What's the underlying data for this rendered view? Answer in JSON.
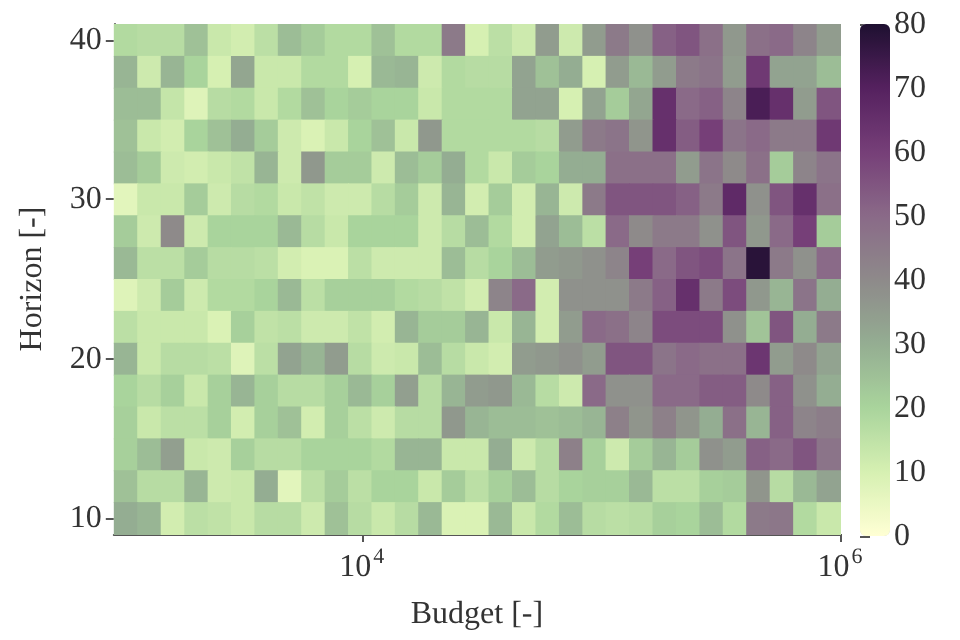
{
  "chart_data": {
    "type": "heatmap",
    "xlabel": "Budget [-]",
    "ylabel": "Horizon [-]",
    "x": [
      1030,
      1290,
      1620,
      2030,
      2540,
      3180,
      3990,
      4990,
      6260,
      7840,
      9820,
      12300,
      15400,
      19300,
      24200,
      30300,
      38000,
      47600,
      59700,
      74800,
      93700,
      117000,
      147000,
      184000,
      231000,
      289000,
      362000,
      454000,
      569000,
      713000,
      894000
    ],
    "y": [
      40,
      38,
      36,
      34,
      32,
      30,
      28,
      26,
      24,
      22,
      20,
      18,
      16,
      14,
      12,
      10
    ],
    "log": "x",
    "xlim": [
      920,
      1000000
    ],
    "xticks": [
      {
        "value": 10000,
        "label": "10$^{4}$"
      },
      {
        "value": 1000000,
        "label": "10$^{6}$"
      }
    ],
    "ylim": [
      9,
      41
    ],
    "yticks": [
      10,
      20,
      30,
      40
    ],
    "clim": [
      0,
      80
    ],
    "cticks": [
      0,
      10,
      20,
      30,
      40,
      50,
      60,
      70,
      80
    ],
    "cells": [
      [
        18,
        17,
        17,
        25,
        13,
        11,
        16,
        26,
        22,
        18,
        18,
        25,
        18,
        18,
        45,
        10,
        16,
        12,
        35,
        12,
        35,
        45,
        38,
        52,
        55,
        48,
        36,
        48,
        50,
        42,
        35
      ],
      [
        28,
        12,
        28,
        20,
        10,
        32,
        13,
        13,
        18,
        18,
        10,
        27,
        28,
        12,
        18,
        17,
        17,
        33,
        25,
        30,
        10,
        35,
        27,
        35,
        45,
        47,
        35,
        62,
        33,
        33,
        26
      ],
      [
        26,
        26,
        14,
        8,
        17,
        18,
        13,
        18,
        25,
        20,
        22,
        20,
        20,
        13,
        18,
        18,
        18,
        33,
        33,
        10,
        33,
        22,
        32,
        65,
        50,
        52,
        42,
        72,
        65,
        35,
        55
      ],
      [
        25,
        13,
        11,
        20,
        25,
        30,
        22,
        12,
        9,
        13,
        20,
        25,
        13,
        36,
        18,
        18,
        18,
        18,
        17,
        35,
        45,
        47,
        37,
        65,
        53,
        60,
        47,
        50,
        45,
        45,
        62
      ],
      [
        26,
        22,
        12,
        11,
        13,
        15,
        28,
        12,
        36,
        22,
        22,
        12,
        26,
        22,
        30,
        18,
        13,
        22,
        20,
        30,
        30,
        48,
        48,
        48,
        35,
        47,
        40,
        48,
        22,
        42,
        47
      ],
      [
        7,
        13,
        13,
        22,
        12,
        17,
        18,
        13,
        15,
        12,
        12,
        17,
        22,
        12,
        28,
        11,
        22,
        11,
        28,
        12,
        45,
        55,
        55,
        55,
        52,
        45,
        67,
        38,
        55,
        65,
        48
      ],
      [
        22,
        12,
        40,
        12,
        20,
        20,
        20,
        27,
        17,
        13,
        20,
        20,
        20,
        12,
        17,
        26,
        18,
        11,
        33,
        26,
        16,
        50,
        40,
        45,
        45,
        38,
        55,
        36,
        50,
        60,
        22
      ],
      [
        27,
        16,
        16,
        22,
        17,
        17,
        16,
        11,
        9,
        9,
        16,
        12,
        12,
        12,
        26,
        17,
        20,
        26,
        35,
        36,
        38,
        42,
        60,
        50,
        55,
        57,
        47,
        78,
        45,
        38,
        50
      ],
      [
        8,
        12,
        22,
        12,
        18,
        18,
        20,
        27,
        16,
        21,
        21,
        21,
        18,
        17,
        15,
        11,
        42,
        50,
        11,
        38,
        38,
        38,
        45,
        52,
        65,
        45,
        57,
        36,
        28,
        47,
        30
      ],
      [
        16,
        13,
        13,
        13,
        9,
        21,
        15,
        16,
        12,
        12,
        15,
        11,
        28,
        22,
        22,
        28,
        13,
        28,
        11,
        35,
        50,
        48,
        42,
        57,
        57,
        57,
        38,
        24,
        55,
        30,
        45
      ],
      [
        28,
        13,
        17,
        17,
        16,
        8,
        16,
        33,
        28,
        35,
        17,
        12,
        13,
        26,
        17,
        13,
        11,
        35,
        36,
        38,
        35,
        55,
        55,
        47,
        50,
        48,
        48,
        63,
        35,
        40,
        33
      ],
      [
        20,
        17,
        21,
        13,
        21,
        28,
        21,
        17,
        17,
        21,
        27,
        21,
        34,
        17,
        28,
        35,
        36,
        27,
        17,
        12,
        50,
        38,
        38,
        50,
        50,
        53,
        53,
        40,
        52,
        38,
        30
      ],
      [
        21,
        13,
        16,
        16,
        21,
        11,
        21,
        25,
        11,
        21,
        16,
        12,
        17,
        17,
        36,
        28,
        26,
        26,
        25,
        26,
        28,
        43,
        37,
        43,
        37,
        30,
        48,
        28,
        52,
        42,
        44
      ],
      [
        21,
        26,
        34,
        13,
        12,
        21,
        17,
        17,
        20,
        20,
        20,
        18,
        28,
        28,
        13,
        13,
        30,
        12,
        17,
        43,
        21,
        12,
        22,
        28,
        22,
        38,
        35,
        52,
        50,
        55,
        47
      ],
      [
        25,
        17,
        17,
        28,
        12,
        13,
        30,
        7,
        16,
        22,
        16,
        20,
        20,
        13,
        22,
        16,
        21,
        26,
        17,
        20,
        21,
        21,
        27,
        16,
        16,
        21,
        22,
        37,
        17,
        27,
        33
      ],
      [
        30,
        28,
        11,
        16,
        15,
        13,
        17,
        17,
        12,
        25,
        17,
        13,
        17,
        27,
        9,
        9,
        27,
        13,
        18,
        26,
        17,
        16,
        17,
        21,
        20,
        26,
        18,
        45,
        46,
        18,
        13
      ]
    ]
  }
}
